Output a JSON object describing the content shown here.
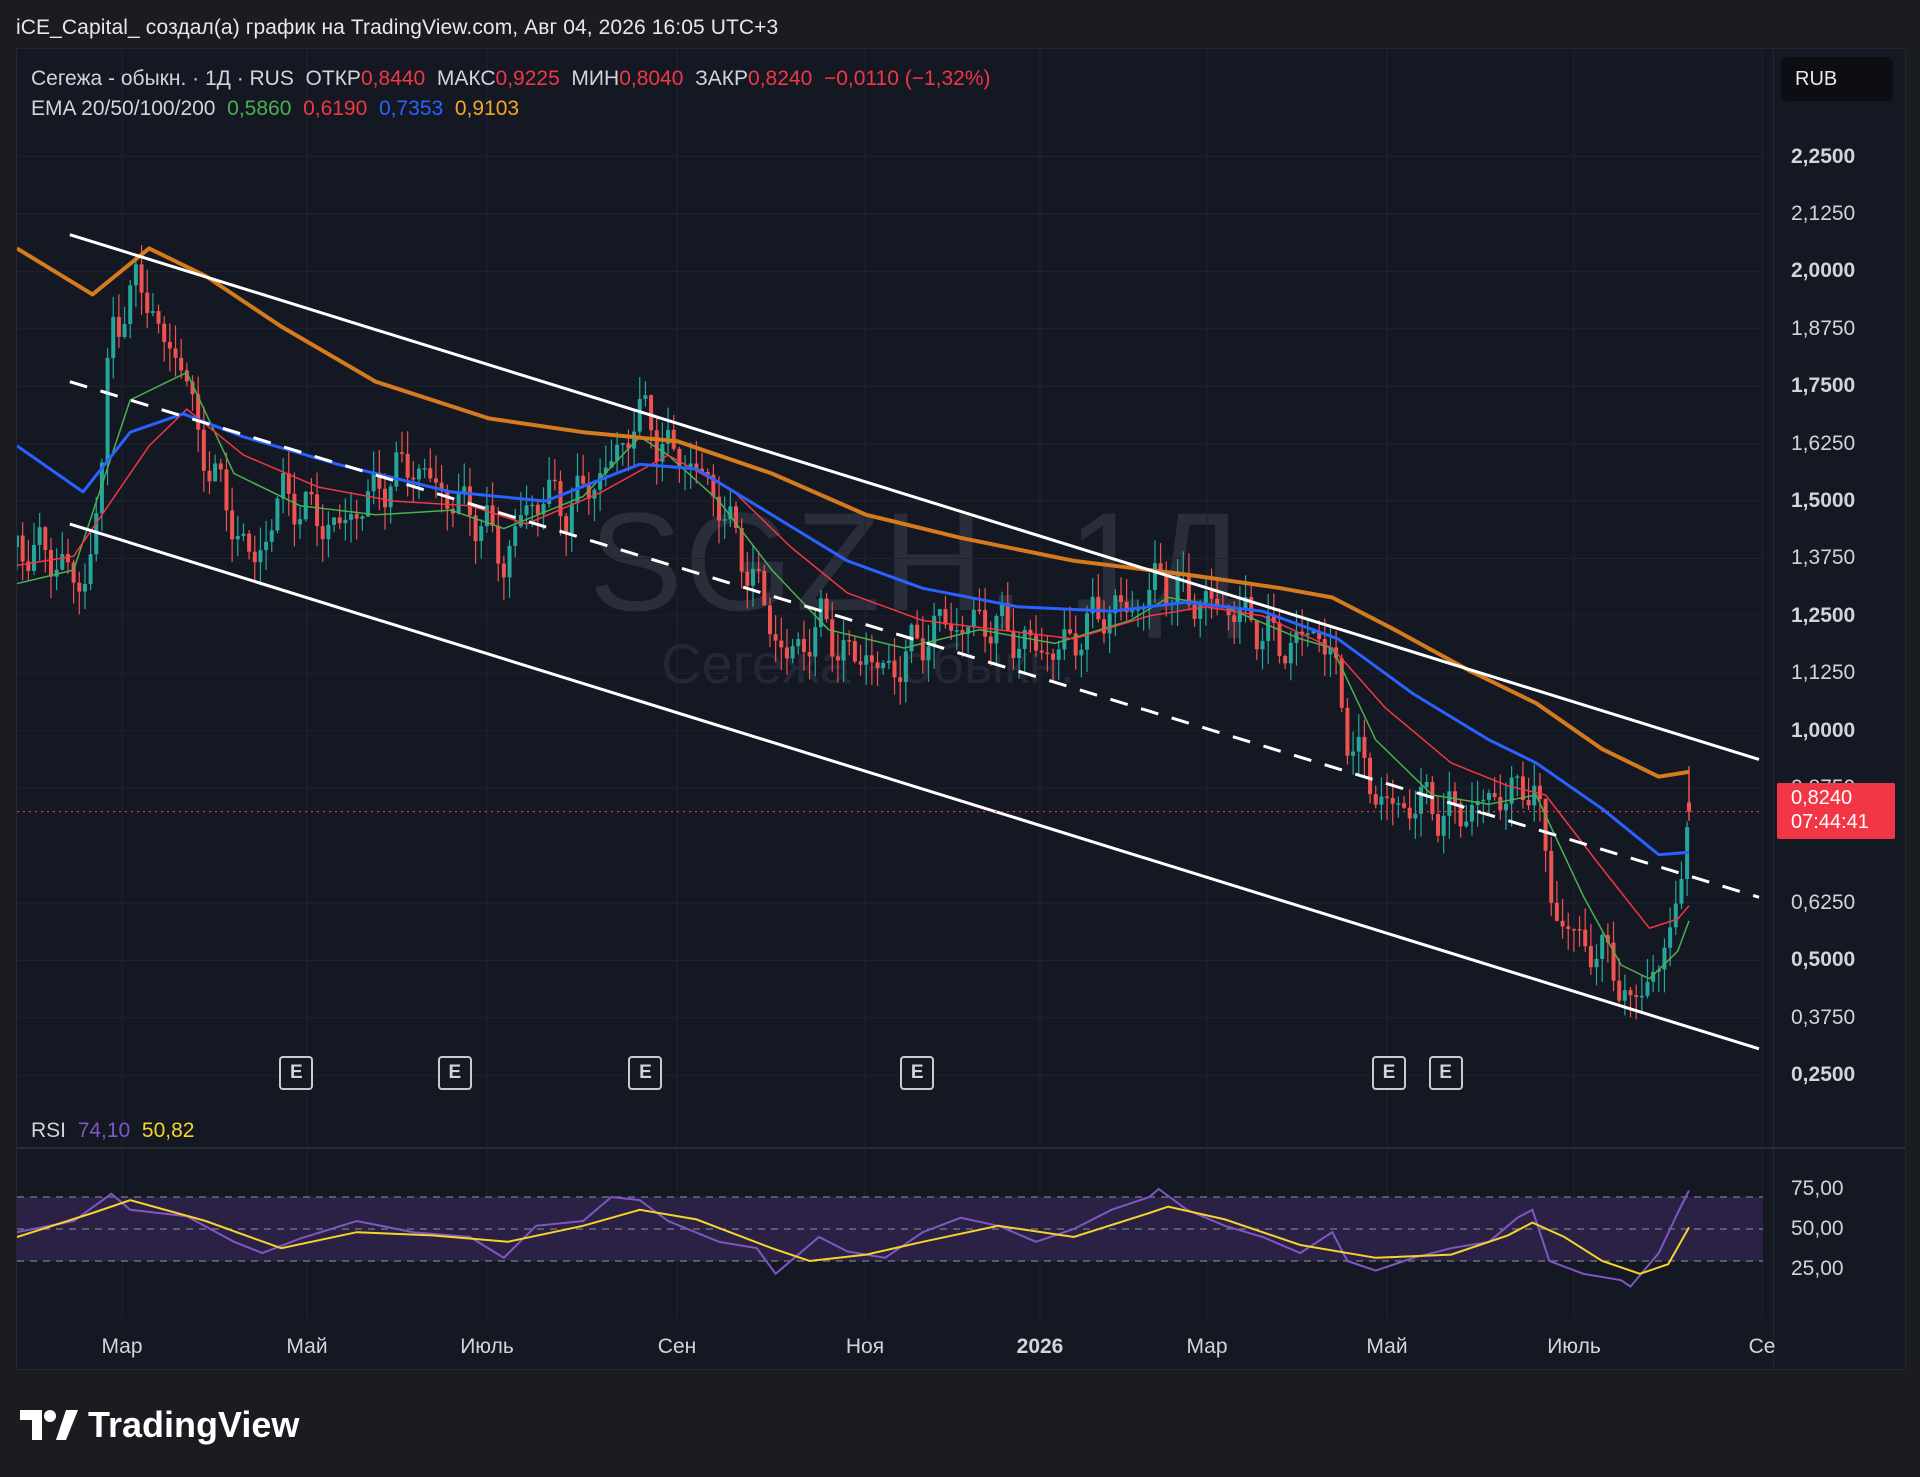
{
  "header": {
    "attribution": "iCE_Capital_ создал(а) график на TradingView.com, Авг 04, 2026 16:05 UTC+3"
  },
  "legend": {
    "symbol": "Сегежа - обыкн. · 1Д · RUS",
    "open_label": "ОТКР",
    "open_value": "0,8440",
    "high_label": "МАКС",
    "high_value": "0,9225",
    "low_label": "МИН",
    "low_value": "0,8040",
    "close_label": "ЗАКР",
    "close_value": "0,8240",
    "change": "−0,0110 (−1,32%)",
    "ema_label": "EMA 20/50/100/200",
    "ema20": "0,5860",
    "ema50": "0,6190",
    "ema100": "0,7353",
    "ema200": "0,9103"
  },
  "currency_button": "RUB",
  "price_tag": {
    "price": "0,8240",
    "countdown": "07:44:41"
  },
  "watermark": {
    "ticker": "SGZH, 1Д",
    "name": "Сегежа - обыкн."
  },
  "price_axis": [
    "2,2500",
    "2,1250",
    "2,0000",
    "1,8750",
    "1,7500",
    "1,6250",
    "1,5000",
    "1,3750",
    "1,2500",
    "1,1250",
    "1,0000",
    "0,8750",
    "0,6250",
    "0,5000",
    "0,3750",
    "0,2500"
  ],
  "time_axis": [
    {
      "label": "Мар",
      "bold": false
    },
    {
      "label": "Май",
      "bold": false
    },
    {
      "label": "Июль",
      "bold": false
    },
    {
      "label": "Сен",
      "bold": false
    },
    {
      "label": "Ноя",
      "bold": false
    },
    {
      "label": "2026",
      "bold": true
    },
    {
      "label": "Мар",
      "bold": false
    },
    {
      "label": "Май",
      "bold": false
    },
    {
      "label": "Июль",
      "bold": false
    },
    {
      "label": "Се",
      "bold": false
    }
  ],
  "earnings_badge": "E",
  "rsi": {
    "label": "RSI",
    "value": "74,10",
    "ma_value": "50,82",
    "axis": [
      "75,00",
      "50,00",
      "25,00"
    ]
  },
  "colors": {
    "ema20": "#4caf50",
    "ema50": "#f23645",
    "ema100": "#2962ff",
    "ema200": "#d67a1e",
    "rsi": "#7e57c2",
    "rsi_ma": "#f6d32d",
    "up": "#26a69a",
    "down": "#ef5350"
  },
  "footer": {
    "brand": "TradingView"
  },
  "chart_data": {
    "type": "candlestick",
    "symbol": "Сегежа - обыкн.",
    "timeframe": "1Д",
    "last": {
      "open": 0.844,
      "high": 0.9225,
      "low": 0.804,
      "close": 0.824
    },
    "ema": {
      "ema20": 0.586,
      "ema50": 0.619,
      "ema100": 0.7353,
      "ema200": 0.9103
    },
    "close_path": [
      [
        0,
        1.4
      ],
      [
        20,
        1.38
      ],
      [
        35,
        1.3
      ],
      [
        45,
        1.55
      ],
      [
        50,
        1.95
      ],
      [
        58,
        1.85
      ],
      [
        64,
        2.05
      ],
      [
        70,
        1.9
      ],
      [
        78,
        1.85
      ],
      [
        88,
        1.8
      ],
      [
        95,
        1.65
      ],
      [
        105,
        1.55
      ],
      [
        115,
        1.45
      ],
      [
        125,
        1.36
      ],
      [
        130,
        1.4
      ],
      [
        140,
        1.52
      ],
      [
        150,
        1.49
      ],
      [
        160,
        1.46
      ],
      [
        170,
        1.44
      ],
      [
        180,
        1.48
      ],
      [
        190,
        1.52
      ],
      [
        200,
        1.56
      ],
      [
        210,
        1.58
      ],
      [
        220,
        1.54
      ],
      [
        230,
        1.5
      ],
      [
        240,
        1.48
      ],
      [
        250,
        1.44
      ],
      [
        258,
        1.36
      ],
      [
        266,
        1.46
      ],
      [
        280,
        1.52
      ],
      [
        290,
        1.48
      ],
      [
        300,
        1.52
      ],
      [
        315,
        1.58
      ],
      [
        325,
        1.66
      ],
      [
        335,
        1.7
      ],
      [
        340,
        1.62
      ],
      [
        350,
        1.6
      ],
      [
        360,
        1.57
      ],
      [
        372,
        1.5
      ],
      [
        382,
        1.4
      ],
      [
        392,
        1.32
      ],
      [
        400,
        1.22
      ],
      [
        408,
        1.16
      ],
      [
        416,
        1.18
      ],
      [
        425,
        1.24
      ],
      [
        433,
        1.2
      ],
      [
        443,
        1.15
      ],
      [
        450,
        1.17
      ],
      [
        460,
        1.12
      ],
      [
        470,
        1.16
      ],
      [
        480,
        1.2
      ],
      [
        490,
        1.24
      ],
      [
        500,
        1.22
      ],
      [
        510,
        1.24
      ],
      [
        520,
        1.23
      ],
      [
        530,
        1.2
      ],
      [
        540,
        1.18
      ],
      [
        550,
        1.17
      ],
      [
        560,
        1.2
      ],
      [
        570,
        1.24
      ],
      [
        580,
        1.27
      ],
      [
        590,
        1.26
      ],
      [
        600,
        1.3
      ],
      [
        605,
        1.34
      ],
      [
        612,
        1.31
      ],
      [
        620,
        1.29
      ],
      [
        630,
        1.28
      ],
      [
        640,
        1.27
      ],
      [
        650,
        1.25
      ],
      [
        660,
        1.22
      ],
      [
        670,
        1.18
      ],
      [
        680,
        1.2
      ],
      [
        690,
        1.22
      ],
      [
        697,
        1.15
      ],
      [
        705,
        1.0
      ],
      [
        715,
        0.9
      ],
      [
        725,
        0.84
      ],
      [
        735,
        0.83
      ],
      [
        745,
        0.85
      ],
      [
        755,
        0.82
      ],
      [
        765,
        0.82
      ],
      [
        775,
        0.84
      ],
      [
        785,
        0.86
      ],
      [
        795,
        0.86
      ],
      [
        803,
        0.9
      ],
      [
        808,
        0.78
      ],
      [
        812,
        0.67
      ],
      [
        818,
        0.57
      ],
      [
        825,
        0.56
      ],
      [
        835,
        0.52
      ],
      [
        845,
        0.5
      ],
      [
        850,
        0.45
      ],
      [
        855,
        0.38
      ],
      [
        862,
        0.46
      ],
      [
        870,
        0.48
      ],
      [
        876,
        0.55
      ],
      [
        882,
        0.72
      ],
      [
        886,
        0.82
      ]
    ],
    "ema_paths": {
      "ema20": [
        [
          0,
          1.32
        ],
        [
          30,
          1.35
        ],
        [
          60,
          1.72
        ],
        [
          90,
          1.78
        ],
        [
          115,
          1.56
        ],
        [
          150,
          1.49
        ],
        [
          190,
          1.47
        ],
        [
          230,
          1.48
        ],
        [
          258,
          1.44
        ],
        [
          300,
          1.51
        ],
        [
          330,
          1.64
        ],
        [
          345,
          1.6
        ],
        [
          372,
          1.5
        ],
        [
          400,
          1.35
        ],
        [
          430,
          1.22
        ],
        [
          470,
          1.18
        ],
        [
          510,
          1.22
        ],
        [
          550,
          1.19
        ],
        [
          590,
          1.24
        ],
        [
          610,
          1.29
        ],
        [
          640,
          1.27
        ],
        [
          680,
          1.2
        ],
        [
          697,
          1.18
        ],
        [
          720,
          0.98
        ],
        [
          750,
          0.86
        ],
        [
          780,
          0.84
        ],
        [
          805,
          0.86
        ],
        [
          830,
          0.64
        ],
        [
          850,
          0.49
        ],
        [
          865,
          0.46
        ],
        [
          880,
          0.52
        ],
        [
          886,
          0.586
        ]
      ],
      "ema50": [
        [
          0,
          1.36
        ],
        [
          30,
          1.38
        ],
        [
          70,
          1.62
        ],
        [
          90,
          1.7
        ],
        [
          120,
          1.6
        ],
        [
          160,
          1.53
        ],
        [
          200,
          1.5
        ],
        [
          240,
          1.49
        ],
        [
          270,
          1.45
        ],
        [
          310,
          1.52
        ],
        [
          345,
          1.6
        ],
        [
          380,
          1.52
        ],
        [
          410,
          1.4
        ],
        [
          440,
          1.3
        ],
        [
          480,
          1.24
        ],
        [
          520,
          1.22
        ],
        [
          560,
          1.2
        ],
        [
          600,
          1.25
        ],
        [
          630,
          1.27
        ],
        [
          660,
          1.25
        ],
        [
          697,
          1.18
        ],
        [
          725,
          1.05
        ],
        [
          760,
          0.93
        ],
        [
          790,
          0.88
        ],
        [
          810,
          0.86
        ],
        [
          840,
          0.7
        ],
        [
          865,
          0.57
        ],
        [
          880,
          0.59
        ],
        [
          886,
          0.619
        ]
      ],
      "ema100": [
        [
          0,
          1.62
        ],
        [
          35,
          1.52
        ],
        [
          60,
          1.65
        ],
        [
          88,
          1.69
        ],
        [
          120,
          1.64
        ],
        [
          170,
          1.58
        ],
        [
          230,
          1.52
        ],
        [
          280,
          1.5
        ],
        [
          330,
          1.58
        ],
        [
          360,
          1.57
        ],
        [
          400,
          1.47
        ],
        [
          440,
          1.37
        ],
        [
          480,
          1.31
        ],
        [
          530,
          1.27
        ],
        [
          580,
          1.26
        ],
        [
          620,
          1.28
        ],
        [
          660,
          1.26
        ],
        [
          700,
          1.2
        ],
        [
          740,
          1.08
        ],
        [
          780,
          0.98
        ],
        [
          805,
          0.93
        ],
        [
          840,
          0.83
        ],
        [
          870,
          0.73
        ],
        [
          886,
          0.7353
        ]
      ],
      "ema200": [
        [
          0,
          2.05
        ],
        [
          40,
          1.95
        ],
        [
          70,
          2.05
        ],
        [
          100,
          1.99
        ],
        [
          140,
          1.88
        ],
        [
          190,
          1.76
        ],
        [
          250,
          1.68
        ],
        [
          300,
          1.65
        ],
        [
          350,
          1.63
        ],
        [
          400,
          1.56
        ],
        [
          450,
          1.47
        ],
        [
          500,
          1.42
        ],
        [
          560,
          1.37
        ],
        [
          620,
          1.34
        ],
        [
          670,
          1.31
        ],
        [
          697,
          1.29
        ],
        [
          730,
          1.22
        ],
        [
          770,
          1.13
        ],
        [
          805,
          1.06
        ],
        [
          840,
          0.96
        ],
        [
          870,
          0.9
        ],
        [
          886,
          0.9103
        ]
      ]
    },
    "channel_lines": {
      "upper": [
        [
          28,
          2.08
        ],
        [
          886,
          0.92
        ]
      ],
      "middle": [
        [
          28,
          1.76
        ],
        [
          886,
          0.62
        ]
      ],
      "lower": [
        [
          28,
          1.45
        ],
        [
          886,
          0.29
        ]
      ]
    },
    "price_range": [
      0.22,
      2.31
    ],
    "rsi_series": [
      [
        0,
        48
      ],
      [
        30,
        55
      ],
      [
        50,
        72
      ],
      [
        60,
        62
      ],
      [
        90,
        58
      ],
      [
        115,
        42
      ],
      [
        130,
        35
      ],
      [
        150,
        44
      ],
      [
        180,
        55
      ],
      [
        210,
        48
      ],
      [
        240,
        45
      ],
      [
        258,
        32
      ],
      [
        275,
        52
      ],
      [
        300,
        55
      ],
      [
        315,
        70
      ],
      [
        330,
        68
      ],
      [
        345,
        55
      ],
      [
        372,
        42
      ],
      [
        392,
        38
      ],
      [
        402,
        22
      ],
      [
        410,
        30
      ],
      [
        425,
        45
      ],
      [
        440,
        36
      ],
      [
        460,
        32
      ],
      [
        480,
        48
      ],
      [
        500,
        57
      ],
      [
        520,
        52
      ],
      [
        540,
        42
      ],
      [
        560,
        50
      ],
      [
        580,
        62
      ],
      [
        600,
        70
      ],
      [
        605,
        75
      ],
      [
        620,
        62
      ],
      [
        640,
        52
      ],
      [
        660,
        45
      ],
      [
        680,
        35
      ],
      [
        697,
        48
      ],
      [
        705,
        30
      ],
      [
        720,
        24
      ],
      [
        740,
        32
      ],
      [
        760,
        38
      ],
      [
        780,
        42
      ],
      [
        795,
        57
      ],
      [
        803,
        62
      ],
      [
        812,
        30
      ],
      [
        830,
        22
      ],
      [
        850,
        18
      ],
      [
        855,
        14
      ],
      [
        870,
        35
      ],
      [
        880,
        60
      ],
      [
        886,
        74
      ]
    ],
    "rsi_ma": [
      [
        0,
        45
      ],
      [
        40,
        60
      ],
      [
        60,
        68
      ],
      [
        100,
        55
      ],
      [
        140,
        38
      ],
      [
        180,
        48
      ],
      [
        220,
        46
      ],
      [
        260,
        42
      ],
      [
        300,
        52
      ],
      [
        330,
        62
      ],
      [
        360,
        56
      ],
      [
        400,
        38
      ],
      [
        420,
        30
      ],
      [
        450,
        34
      ],
      [
        480,
        42
      ],
      [
        520,
        52
      ],
      [
        560,
        45
      ],
      [
        600,
        60
      ],
      [
        610,
        64
      ],
      [
        640,
        56
      ],
      [
        680,
        40
      ],
      [
        720,
        32
      ],
      [
        760,
        34
      ],
      [
        790,
        46
      ],
      [
        803,
        54
      ],
      [
        820,
        45
      ],
      [
        840,
        30
      ],
      [
        860,
        22
      ],
      [
        875,
        28
      ],
      [
        886,
        51
      ]
    ],
    "rsi_levels": [
      70,
      50,
      30
    ],
    "earnings_markers_x": [
      148,
      232,
      333,
      477,
      727,
      757
    ]
  }
}
